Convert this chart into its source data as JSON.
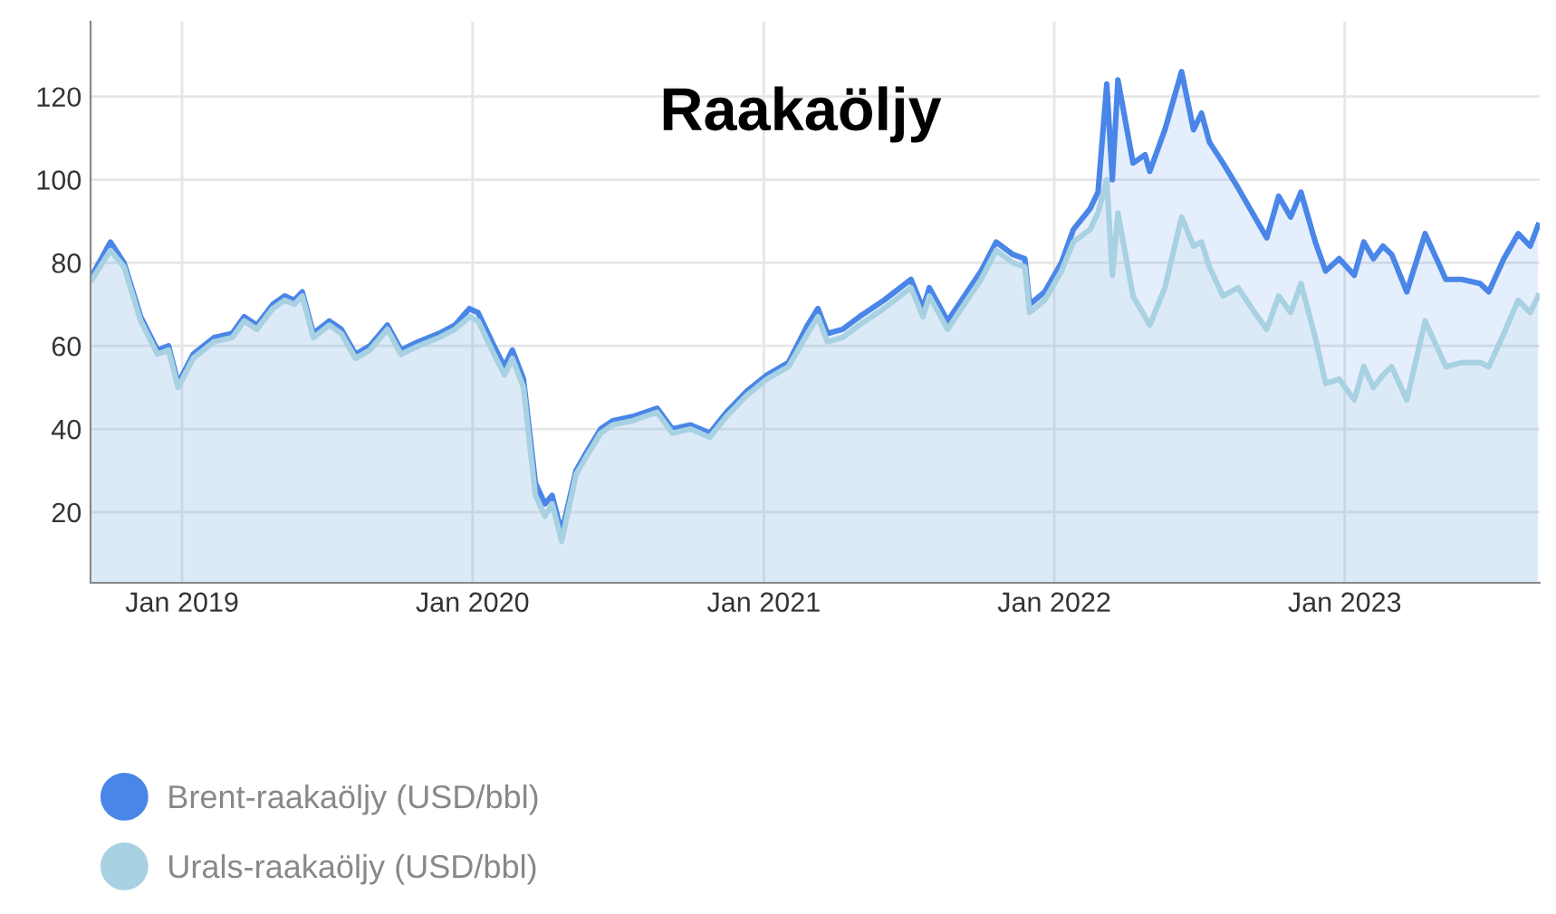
{
  "chart_data": {
    "type": "area",
    "title": "Raakaöljy",
    "x": [
      "2018-09-10",
      "2018-10-03",
      "2018-10-20",
      "2018-11-10",
      "2018-12-01",
      "2018-12-15",
      "2018-12-27",
      "2019-01-15",
      "2019-02-10",
      "2019-03-05",
      "2019-03-20",
      "2019-04-05",
      "2019-04-25",
      "2019-05-10",
      "2019-05-22",
      "2019-06-01",
      "2019-06-15",
      "2019-07-05",
      "2019-07-20",
      "2019-08-07",
      "2019-08-25",
      "2019-09-16",
      "2019-10-03",
      "2019-10-25",
      "2019-11-20",
      "2019-12-10",
      "2019-12-28",
      "2020-01-08",
      "2020-01-28",
      "2020-02-10",
      "2020-02-20",
      "2020-03-05",
      "2020-03-20",
      "2020-04-01",
      "2020-04-10",
      "2020-04-22",
      "2020-05-10",
      "2020-05-25",
      "2020-06-10",
      "2020-06-25",
      "2020-07-20",
      "2020-08-20",
      "2020-09-08",
      "2020-10-01",
      "2020-10-25",
      "2020-11-15",
      "2020-12-10",
      "2021-01-05",
      "2021-02-01",
      "2021-02-25",
      "2021-03-10",
      "2021-03-22",
      "2021-04-10",
      "2021-05-01",
      "2021-06-01",
      "2021-07-05",
      "2021-07-20",
      "2021-07-28",
      "2021-08-20",
      "2021-09-10",
      "2021-10-01",
      "2021-10-20",
      "2021-11-10",
      "2021-11-25",
      "2021-12-01",
      "2021-12-20",
      "2022-01-10",
      "2022-01-25",
      "2022-02-15",
      "2022-02-25",
      "2022-03-08",
      "2022-03-15",
      "2022-03-22",
      "2022-04-10",
      "2022-04-25",
      "2022-05-01",
      "2022-05-20",
      "2022-06-10",
      "2022-06-25",
      "2022-07-05",
      "2022-07-15",
      "2022-08-01",
      "2022-08-20",
      "2022-09-10",
      "2022-09-25",
      "2022-10-10",
      "2022-10-25",
      "2022-11-07",
      "2022-11-25",
      "2022-12-08",
      "2022-12-25",
      "2023-01-13",
      "2023-01-25",
      "2023-02-06",
      "2023-02-18",
      "2023-03-01",
      "2023-03-20",
      "2023-04-12",
      "2023-05-01",
      "2023-05-08",
      "2023-05-28",
      "2023-06-20",
      "2023-07-01",
      "2023-07-20",
      "2023-08-07",
      "2023-08-22",
      "2023-09-01"
    ],
    "series": [
      {
        "name": "Brent-raakaöljy (USD/bbl)",
        "color": "#4a86e8",
        "values": [
          77,
          85,
          80,
          67,
          59,
          60,
          51,
          58,
          62,
          63,
          67,
          65,
          70,
          72,
          71,
          73,
          63,
          66,
          64,
          58,
          60,
          65,
          59,
          61,
          63,
          65,
          69,
          68,
          60,
          55,
          59,
          52,
          27,
          22,
          24,
          15,
          30,
          35,
          40,
          42,
          43,
          45,
          40,
          41,
          39,
          44,
          49,
          53,
          56,
          65,
          69,
          63,
          64,
          67,
          71,
          76,
          69,
          74,
          66,
          72,
          78,
          85,
          82,
          81,
          70,
          73,
          80,
          88,
          93,
          97,
          123,
          100,
          124,
          104,
          106,
          102,
          112,
          126,
          112,
          116,
          109,
          104,
          98,
          91,
          86,
          96,
          91,
          97,
          85,
          78,
          81,
          77,
          85,
          81,
          84,
          82,
          73,
          87,
          79,
          76,
          76,
          75,
          73,
          81,
          87,
          84,
          89
        ]
      },
      {
        "name": "Urals-raakaöljy (USD/bbl)",
        "color": "#a8d1e2",
        "values": [
          76,
          83,
          79,
          66,
          58,
          59,
          50,
          57,
          61,
          62,
          66,
          64,
          69,
          71,
          70,
          72,
          62,
          65,
          63,
          57,
          59,
          64,
          58,
          60,
          62,
          64,
          67,
          66,
          58,
          53,
          57,
          50,
          24,
          19,
          22,
          13,
          29,
          34,
          39,
          41,
          42,
          44,
          39,
          40,
          38,
          43,
          48,
          52,
          55,
          63,
          67,
          61,
          62,
          65,
          69,
          74,
          67,
          72,
          64,
          70,
          76,
          83,
          80,
          79,
          68,
          71,
          78,
          85,
          88,
          92,
          100,
          77,
          92,
          72,
          67,
          65,
          74,
          91,
          84,
          85,
          79,
          72,
          74,
          68,
          64,
          72,
          68,
          75,
          62,
          51,
          52,
          47,
          55,
          50,
          53,
          55,
          47,
          66,
          58,
          55,
          56,
          56,
          55,
          63,
          71,
          68,
          72
        ]
      }
    ],
    "xlim": [
      "2018-09-08",
      "2023-09-03"
    ],
    "xticks": [
      {
        "value": "2019-01-01",
        "label": "Jan 2019"
      },
      {
        "value": "2020-01-01",
        "label": "Jan 2020"
      },
      {
        "value": "2021-01-01",
        "label": "Jan 2021"
      },
      {
        "value": "2022-01-01",
        "label": "Jan 2022"
      },
      {
        "value": "2023-01-01",
        "label": "Jan 2023"
      }
    ],
    "ylim": [
      3,
      138
    ],
    "yticks": [
      20,
      40,
      60,
      80,
      100,
      120
    ],
    "grid": true,
    "legend": "bottom left"
  }
}
